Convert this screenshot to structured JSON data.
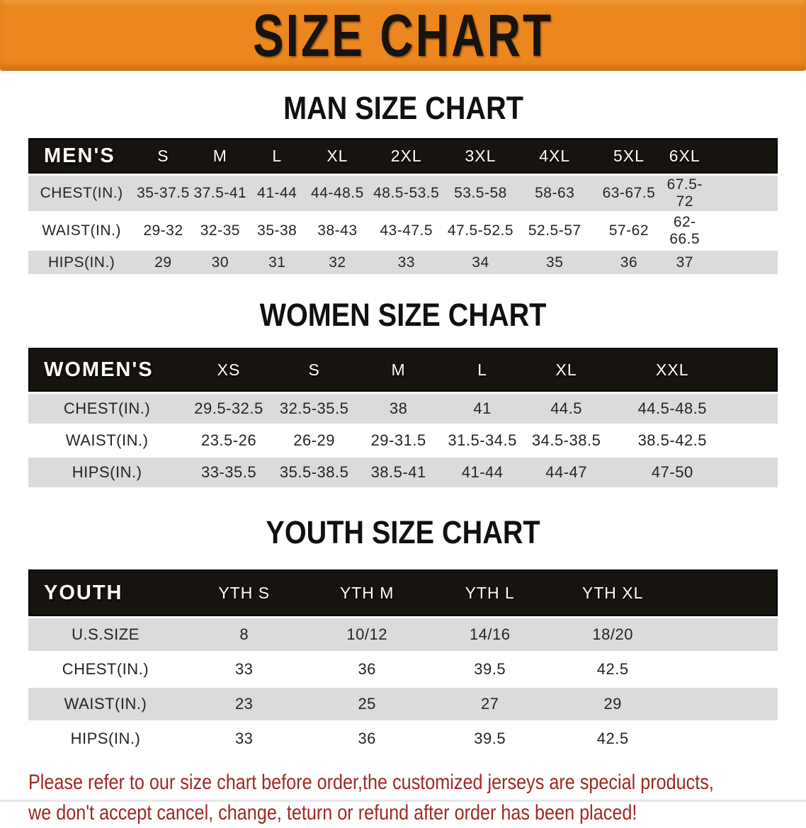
{
  "banner": {
    "title": "SIZE CHART"
  },
  "colors": {
    "banner_bg": "#EC861E",
    "header_bg": "#17140F",
    "stripe": "#DBDBDB",
    "footer_red": "#9E2823"
  },
  "sections": [
    {
      "heading": "MAN SIZE CHART",
      "corner": "MEN'S",
      "sizes": [
        "S",
        "M",
        "L",
        "XL",
        "2XL",
        "3XL",
        "4XL",
        "5XL",
        "6XL"
      ],
      "rows": [
        {
          "label": "CHEST(IN.)",
          "values": [
            "35-37.5",
            "37.5-41",
            "41-44",
            "44-48.5",
            "48.5-53.5",
            "53.5-58",
            "58-63",
            "63-67.5",
            "67.5-72"
          ]
        },
        {
          "label": "WAIST(IN.)",
          "values": [
            "29-32",
            "32-35",
            "35-38",
            "38-43",
            "43-47.5",
            "47.5-52.5",
            "52.5-57",
            "57-62",
            "62-66.5"
          ]
        },
        {
          "label": "HIPS(IN.)",
          "values": [
            "29",
            "30",
            "31",
            "32",
            "33",
            "34",
            "35",
            "36",
            "37"
          ]
        }
      ]
    },
    {
      "heading": "WOMEN SIZE CHART",
      "corner": "WOMEN'S",
      "sizes": [
        "XS",
        "S",
        "M",
        "L",
        "XL",
        "XXL"
      ],
      "rows": [
        {
          "label": "CHEST(IN.)",
          "values": [
            "29.5-32.5",
            "32.5-35.5",
            "38",
            "41",
            "44.5",
            "44.5-48.5"
          ]
        },
        {
          "label": "WAIST(IN.)",
          "values": [
            "23.5-26",
            "26-29",
            "29-31.5",
            "31.5-34.5",
            "34.5-38.5",
            "38.5-42.5"
          ]
        },
        {
          "label": "HIPS(IN.)",
          "values": [
            "33-35.5",
            "35.5-38.5",
            "38.5-41",
            "41-44",
            "44-47",
            "47-50"
          ]
        }
      ]
    },
    {
      "heading": "YOUTH SIZE CHART",
      "corner": "YOUTH",
      "sizes": [
        "YTH S",
        "YTH M",
        "YTH L",
        "YTH XL"
      ],
      "rows": [
        {
          "label": "U.S.SIZE",
          "values": [
            "8",
            "10/12",
            "14/16",
            "18/20"
          ]
        },
        {
          "label": "CHEST(IN.)",
          "values": [
            "33",
            "36",
            "39.5",
            "42.5"
          ]
        },
        {
          "label": "WAIST(IN.)",
          "values": [
            "23",
            "25",
            "27",
            "29"
          ]
        },
        {
          "label": "HIPS(IN.)",
          "values": [
            "33",
            "36",
            "39.5",
            "42.5"
          ]
        }
      ]
    }
  ],
  "footer": {
    "line1": "Please refer to our size chart before order,the customized jerseys are special products,",
    "line2": "we don't accept cancel, change, teturn or refund after order has been placed!"
  }
}
